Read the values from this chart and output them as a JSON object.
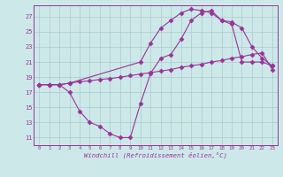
{
  "bg_color": "#cde8e8",
  "grid_color": "#aacccc",
  "line_color": "#993399",
  "marker_color": "#993399",
  "xlabel": "Windchill (Refroidissement éolien,°C)",
  "xlabel_color": "#993399",
  "ylabel_ticks": [
    11,
    13,
    15,
    17,
    19,
    21,
    23,
    25,
    27
  ],
  "xlim": [
    -0.5,
    23.5
  ],
  "ylim": [
    10.0,
    28.5
  ],
  "line1_x": [
    0,
    1,
    2,
    3,
    4,
    5,
    6,
    7,
    8,
    9,
    10,
    11,
    12,
    13,
    14,
    15,
    16,
    17,
    18,
    19,
    20,
    21,
    22,
    23
  ],
  "line1_y": [
    18.0,
    18.0,
    18.0,
    18.2,
    18.4,
    18.5,
    18.7,
    18.8,
    19.0,
    19.2,
    19.4,
    19.6,
    19.8,
    20.0,
    20.3,
    20.5,
    20.7,
    21.0,
    21.2,
    21.5,
    21.7,
    22.0,
    22.2,
    20.0
  ],
  "line2_x": [
    0,
    1,
    2,
    3,
    10,
    11,
    12,
    13,
    14,
    15,
    16,
    17,
    18,
    19,
    20,
    21,
    22,
    23
  ],
  "line2_y": [
    18.0,
    18.0,
    18.0,
    18.2,
    21.0,
    23.5,
    25.5,
    26.5,
    27.5,
    28.0,
    27.8,
    27.5,
    26.5,
    26.3,
    25.5,
    23.0,
    21.5,
    20.5
  ],
  "line3_x": [
    0,
    1,
    2,
    3,
    4,
    5,
    6,
    7,
    8,
    9,
    10,
    11,
    12,
    13,
    14,
    15,
    16,
    17,
    18,
    19,
    20,
    21,
    22,
    23
  ],
  "line3_y": [
    18.0,
    18.0,
    18.0,
    17.0,
    14.5,
    13.0,
    12.5,
    11.5,
    11.0,
    11.0,
    15.5,
    19.5,
    21.5,
    22.0,
    24.0,
    26.5,
    27.5,
    27.8,
    26.5,
    26.0,
    21.0,
    21.0,
    21.0,
    20.5
  ],
  "xtick_labels": [
    "0",
    "1",
    "2",
    "3",
    "4",
    "5",
    "6",
    "7",
    "8",
    "9",
    "10",
    "11",
    "12",
    "13",
    "14",
    "15",
    "16",
    "17",
    "18",
    "19",
    "20",
    "21",
    "22",
    "23"
  ]
}
